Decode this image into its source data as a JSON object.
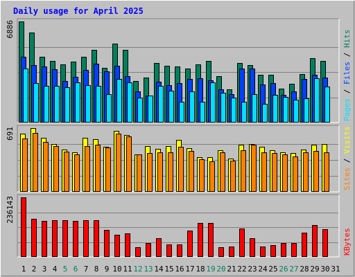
{
  "chart_data": {
    "type": "bar",
    "title": "Daily usage for April 2025",
    "categories": [
      "1",
      "2",
      "3",
      "4",
      "5",
      "6",
      "7",
      "8",
      "9",
      "10",
      "11",
      "12",
      "13",
      "14",
      "15",
      "16",
      "17",
      "18",
      "19",
      "20",
      "21",
      "22",
      "23",
      "24",
      "25",
      "26",
      "27",
      "28",
      "29",
      "30",
      "31"
    ],
    "weekend_days": [
      "5",
      "6",
      "12",
      "13",
      "19",
      "20",
      "26",
      "27"
    ],
    "legend_separator": " / ",
    "panels": [
      {
        "name": "hits-files-pages",
        "max_label": "6886",
        "ymax": 6886,
        "legend": [
          {
            "label": "Pages",
            "color": "#00E0FF"
          },
          {
            "label": "Files",
            "color": "#0040FF"
          },
          {
            "label": "Hits",
            "color": "#00805C"
          }
        ],
        "series": [
          {
            "name": "Hits",
            "color": "#00805C",
            "values": [
              6886,
              6110,
              4480,
              4180,
              3940,
              4170,
              4480,
              4960,
              3740,
              5380,
              4960,
              2820,
              3060,
              4060,
              3870,
              3840,
              3670,
              3940,
              4190,
              3150,
              2280,
              4040,
              3930,
              3260,
              3250,
              2290,
              2650,
              3310,
              4390,
              4210,
              null
            ]
          },
          {
            "name": "Files",
            "color": "#0040FF",
            "values": [
              4460,
              3930,
              3820,
              3610,
              2830,
              3130,
              3600,
              4020,
              3490,
              3870,
              3140,
              2110,
              1850,
              2770,
              2530,
              2710,
              2990,
              3000,
              2900,
              2260,
              1920,
              3670,
              3680,
              2600,
              2690,
              1880,
              2130,
              2990,
              3250,
              3080,
              null
            ]
          },
          {
            "name": "Pages",
            "color": "#00E0FF",
            "values": [
              3660,
              2700,
              2490,
              2490,
              2410,
              2720,
              2540,
              2490,
              1940,
              2960,
              2720,
              1680,
              1850,
              2510,
              2170,
              1430,
              2110,
              1430,
              2750,
              2020,
              1680,
              1420,
              1920,
              1250,
              1880,
              1750,
              1540,
              1630,
              3030,
              2470,
              null
            ]
          }
        ]
      },
      {
        "name": "visits-sites",
        "max_label": "691",
        "ymax": 691,
        "legend": [
          {
            "label": "Sites",
            "color": "#FF8000"
          },
          {
            "label": "Visits",
            "color": "#FFFF00"
          }
        ],
        "series": [
          {
            "name": "Visits",
            "color": "#FFFF00",
            "values": [
              631,
              691,
              583,
              518,
              458,
              428,
              583,
              573,
              488,
              661,
              618,
              408,
              498,
              468,
              498,
              563,
              473,
              378,
              378,
              448,
              358,
              508,
              518,
              488,
              448,
              428,
              418,
              458,
              508,
              518,
              null
            ]
          },
          {
            "name": "Sites",
            "color": "#FF8000",
            "values": [
              578,
              638,
              538,
              493,
              433,
              408,
              498,
              513,
              478,
              628,
              598,
              408,
              418,
              428,
              428,
              488,
              443,
              353,
              333,
              428,
              338,
              448,
              508,
              428,
              418,
              408,
              383,
              428,
              443,
              428,
              null
            ]
          }
        ]
      },
      {
        "name": "kbytes",
        "max_label": "236143",
        "ymax": 236143,
        "legend": [
          {
            "label": "KBytes",
            "color": "#FF0000"
          }
        ],
        "series": [
          {
            "name": "KBytes",
            "color": "#FF0000",
            "values": [
              236143,
              151270,
              143400,
              146800,
              144510,
              143390,
              145640,
              145640,
              107500,
              86740,
              92560,
              38670,
              53660,
              75350,
              50140,
              48810,
              104970,
              134880,
              135850,
              37910,
              41640,
              111280,
              73490,
              41840,
              46790,
              53660,
              55850,
              95940,
              126400,
              110640,
              null
            ]
          }
        ]
      }
    ]
  }
}
